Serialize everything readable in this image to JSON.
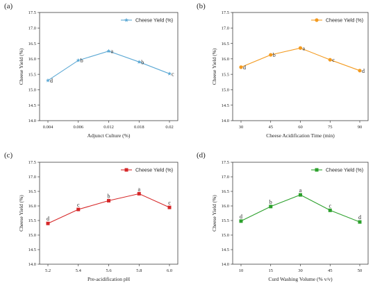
{
  "chart_data": [
    {
      "panel": "(a)",
      "type": "line",
      "categories": [
        "0.004",
        "0.006",
        "0.012",
        "0.018",
        "0.02"
      ],
      "series": [
        {
          "name": "Cheese Yield (%)",
          "values": [
            15.3,
            15.95,
            16.25,
            15.9,
            15.52
          ]
        }
      ],
      "labels": [
        "d",
        "b",
        "a",
        "b",
        "c"
      ],
      "xlabel": "Adjunct Culture (%)",
      "ylabel": "Cheese Yield (%)",
      "ylim": [
        14.0,
        17.5
      ],
      "yticks": [
        "14.0",
        "14.5",
        "15.0",
        "15.5",
        "16.0",
        "16.5",
        "17.0",
        "17.5"
      ],
      "color": "#5ba8d4",
      "marker": "star",
      "legend_position": "top-right"
    },
    {
      "panel": "(b)",
      "type": "line",
      "categories": [
        "30",
        "45",
        "60",
        "75",
        "90"
      ],
      "series": [
        {
          "name": "Cheese Yield (%)",
          "values": [
            15.73,
            16.13,
            16.35,
            15.97,
            15.62
          ]
        }
      ],
      "labels": [
        "d",
        "b",
        "a",
        "c",
        "d"
      ],
      "xlabel": "Cheese Acidification Time (min)",
      "ylabel": "Cheese Yield (%)",
      "ylim": [
        14.0,
        17.5
      ],
      "yticks": [
        "14.0",
        "14.5",
        "15.0",
        "15.5",
        "16.0",
        "16.5",
        "17.0",
        "17.5"
      ],
      "color": "#f39a1f",
      "marker": "circle",
      "legend_position": "top-right"
    },
    {
      "panel": "(c)",
      "type": "line",
      "categories": [
        "5.2",
        "5.4",
        "5.6",
        "5.8",
        "6.0"
      ],
      "series": [
        {
          "name": "Cheese Yield (%)",
          "values": [
            15.4,
            15.88,
            16.18,
            16.42,
            15.95
          ]
        }
      ],
      "labels": [
        "d",
        "c",
        "b",
        "a",
        "c"
      ],
      "xlabel": "Pre-acidification pH",
      "ylabel": "Cheese Yield (%)",
      "ylim": [
        14.0,
        17.5
      ],
      "yticks": [
        "14.0",
        "14.5",
        "15.0",
        "15.5",
        "16.0",
        "16.5",
        "17.0",
        "17.5"
      ],
      "color": "#d62728",
      "marker": "square",
      "legend_position": "top-right"
    },
    {
      "panel": "(d)",
      "type": "line",
      "categories": [
        "10",
        "15",
        "30",
        "45",
        "50"
      ],
      "series": [
        {
          "name": "Cheese Yield (%)",
          "values": [
            15.48,
            15.98,
            16.38,
            15.85,
            15.45
          ]
        }
      ],
      "labels": [
        "d",
        "b",
        "a",
        "c",
        "d"
      ],
      "xlabel": "Curd Washing Volume (% v/v)",
      "ylabel": "Cheese Yield (%)",
      "ylim": [
        14.0,
        17.5
      ],
      "yticks": [
        "14.0",
        "14.5",
        "15.0",
        "15.5",
        "16.0",
        "16.5",
        "17.0",
        "17.5"
      ],
      "color": "#2ca02c",
      "marker": "square",
      "legend_position": "top-right"
    }
  ]
}
